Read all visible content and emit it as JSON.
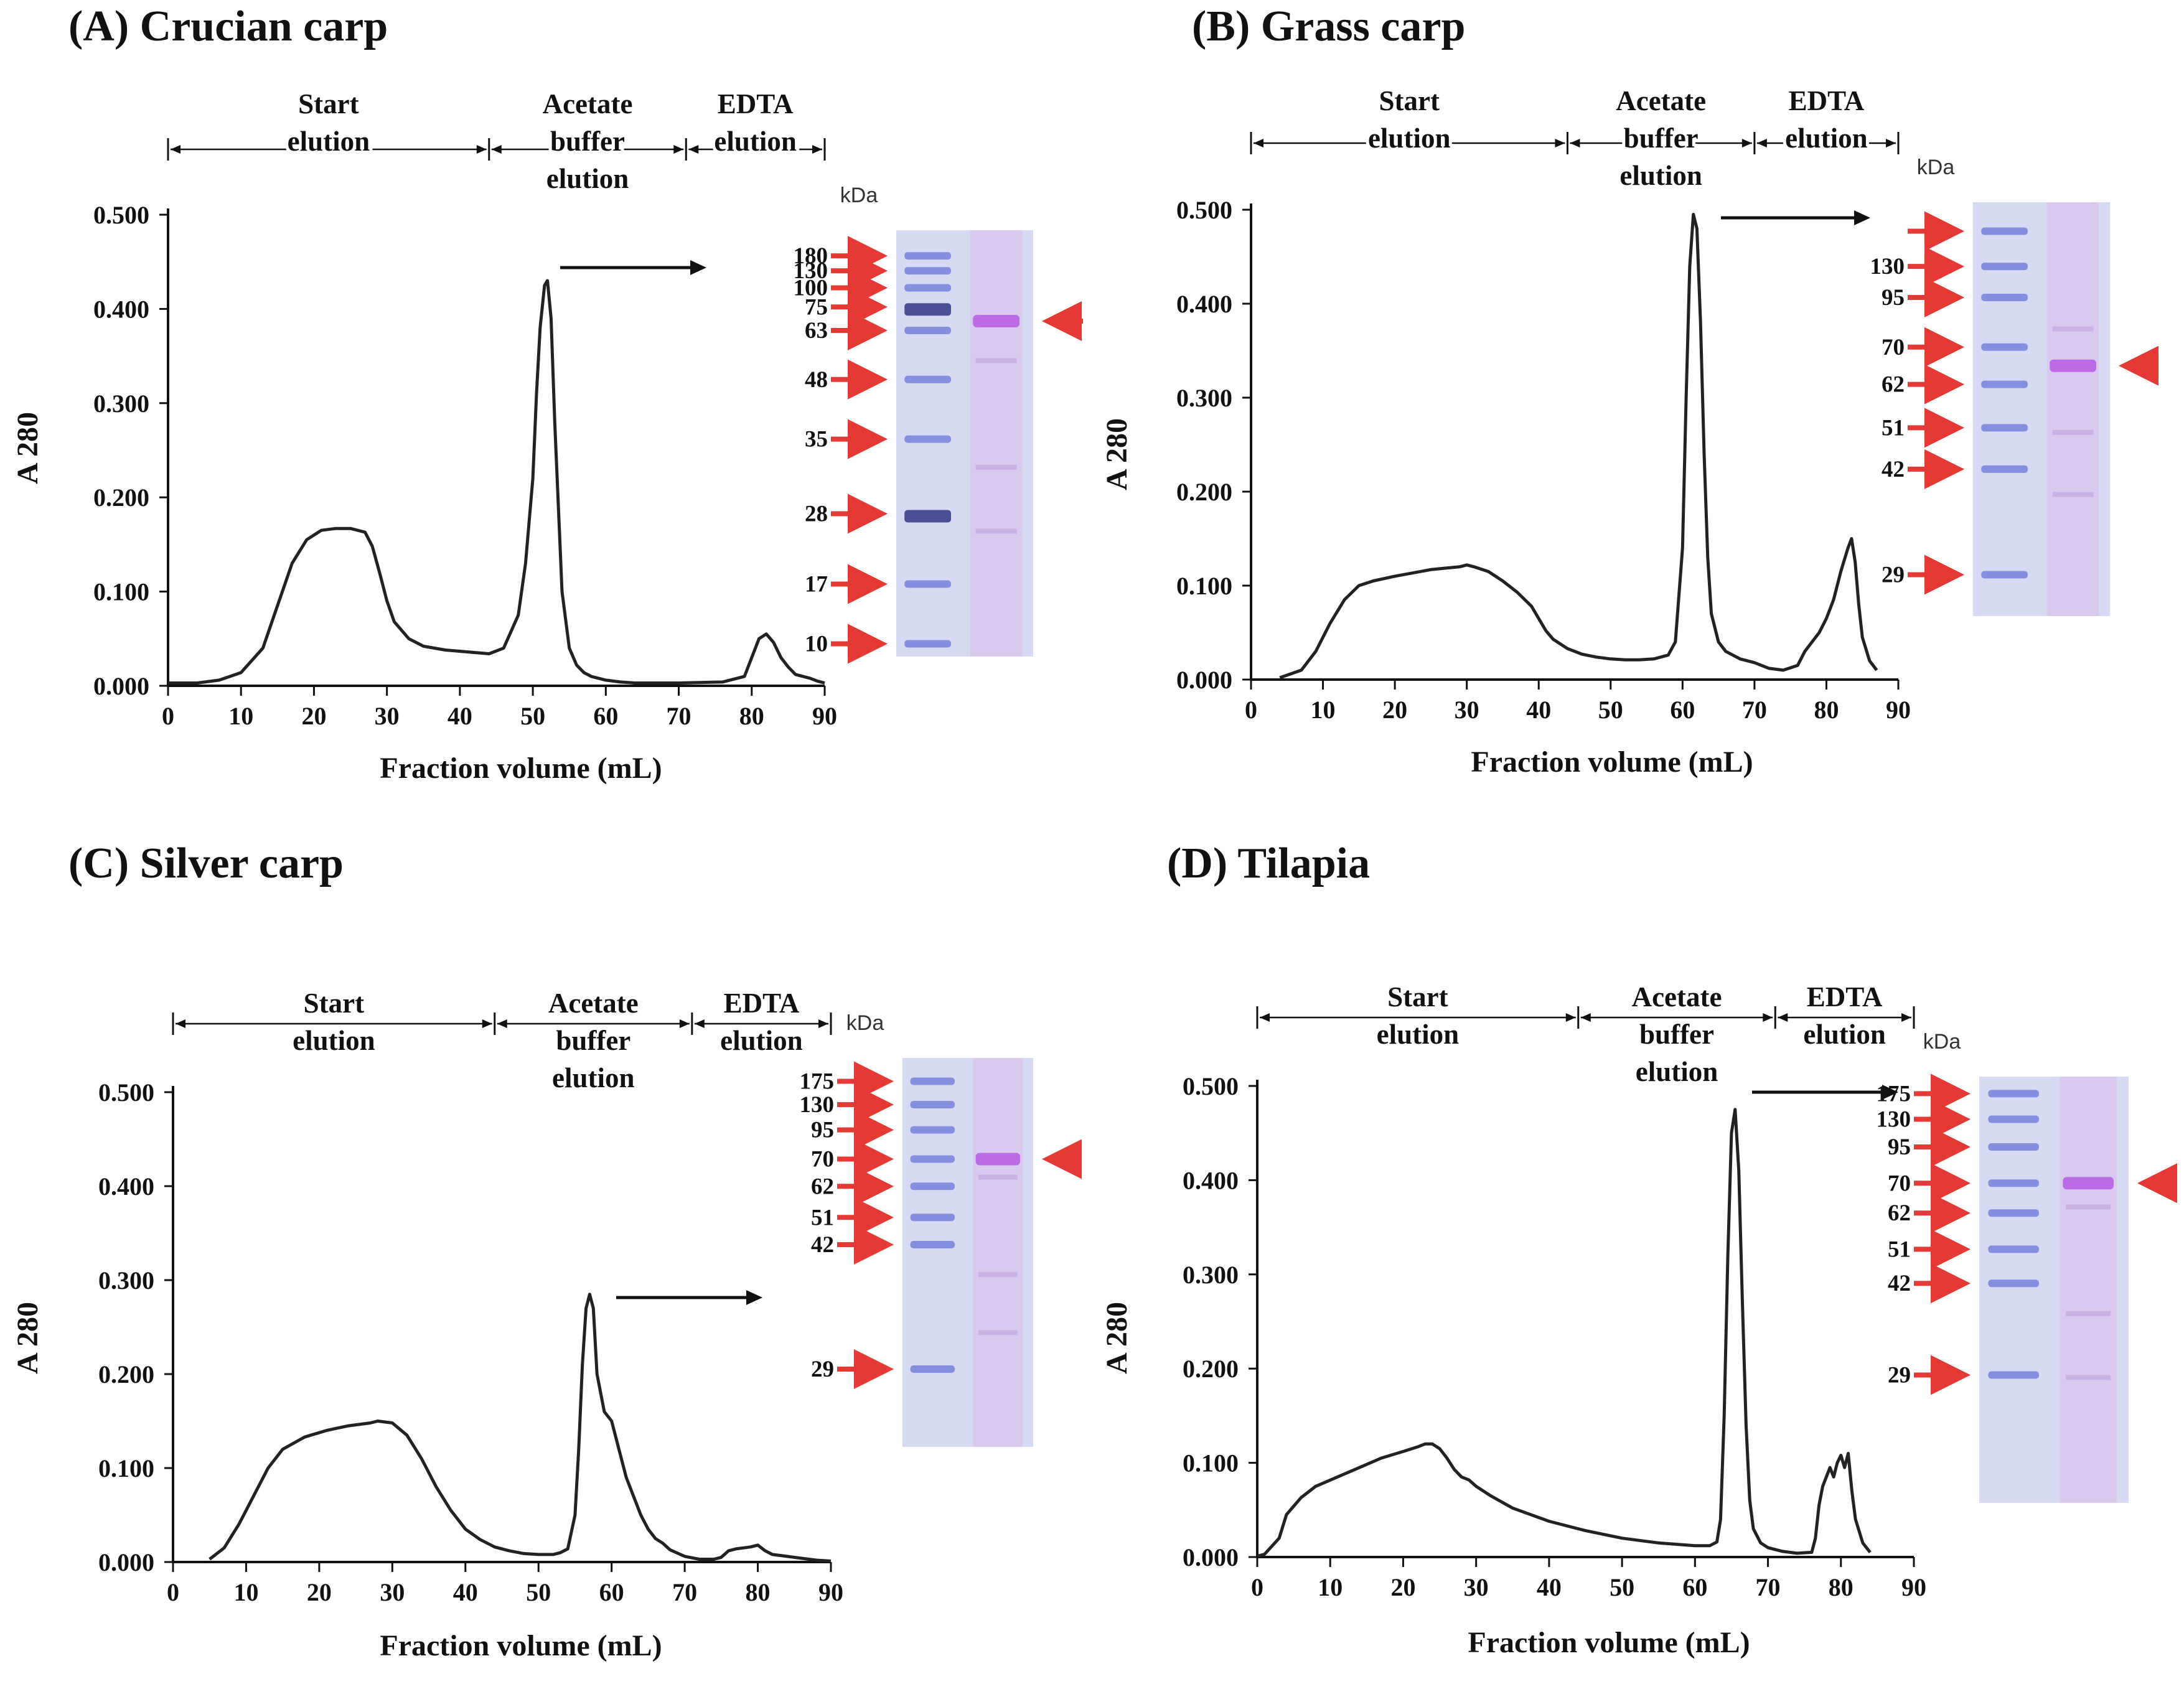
{
  "chart_data": [
    {
      "type": "line",
      "title": "(A) Crucian carp",
      "xlabel": "Fraction volume (mL)",
      "ylabel": "A 280",
      "xlim": [
        0,
        90
      ],
      "ylim": [
        0,
        0.5
      ],
      "xticks": [
        "0",
        "10",
        "20",
        "30",
        "40",
        "50",
        "60",
        "70",
        "80",
        "90"
      ],
      "yticks": [
        "0.000",
        "0.100",
        "0.200",
        "0.300",
        "0.400",
        "0.500"
      ],
      "elution_labels": [
        [
          "Start",
          "elution"
        ],
        [
          "Acetate",
          "buffer",
          "elution"
        ],
        [
          "EDTA",
          "elution"
        ]
      ],
      "elution_bounds": [
        0,
        44,
        71,
        90
      ],
      "gel": {
        "unit_label": "kDa",
        "markers": [
          "180",
          "130",
          "100",
          "75",
          "63",
          "48",
          "35",
          "28",
          "17",
          "10"
        ],
        "target_band": "63"
      },
      "series": [
        {
          "name": "A280",
          "x": [
            0,
            4,
            7,
            10,
            13,
            15,
            17,
            19,
            21,
            23,
            25,
            27,
            28,
            29,
            30,
            31,
            33,
            35,
            38,
            41,
            44,
            46,
            48,
            49,
            50,
            50.5,
            51,
            51.6,
            52,
            52.5,
            53,
            54,
            55,
            56,
            57,
            58,
            60,
            62,
            64,
            70,
            76,
            79,
            80,
            81,
            82,
            83,
            84,
            85,
            86,
            88,
            89,
            90
          ],
          "y": [
            0.003,
            0.003,
            0.006,
            0.014,
            0.04,
            0.085,
            0.13,
            0.155,
            0.165,
            0.167,
            0.167,
            0.163,
            0.148,
            0.12,
            0.09,
            0.068,
            0.05,
            0.042,
            0.038,
            0.036,
            0.034,
            0.04,
            0.075,
            0.13,
            0.22,
            0.31,
            0.38,
            0.425,
            0.43,
            0.39,
            0.28,
            0.1,
            0.04,
            0.022,
            0.014,
            0.01,
            0.006,
            0.004,
            0.003,
            0.003,
            0.004,
            0.01,
            0.03,
            0.05,
            0.055,
            0.046,
            0.03,
            0.02,
            0.012,
            0.008,
            0.005,
            0.003
          ]
        }
      ]
    },
    {
      "type": "line",
      "title": "(B) Grass carp",
      "xlabel": "Fraction volume (mL)",
      "ylabel": "A 280",
      "xlim": [
        0,
        90
      ],
      "ylim": [
        0,
        0.5
      ],
      "xticks": [
        "0",
        "10",
        "20",
        "30",
        "40",
        "50",
        "60",
        "70",
        "80",
        "90"
      ],
      "yticks": [
        "0.000",
        "0.100",
        "0.200",
        "0.300",
        "0.400",
        "0.500"
      ],
      "elution_labels": [
        [
          "Start",
          "elution"
        ],
        [
          "Acetate",
          "buffer",
          "elution"
        ],
        [
          "EDTA",
          "elution"
        ]
      ],
      "elution_bounds": [
        0,
        44,
        70,
        90
      ],
      "gel": {
        "unit_label": "kDa",
        "markers": [
          "",
          "130",
          "95",
          "70",
          "62",
          "51",
          "42",
          "29"
        ],
        "target_band": "70"
      },
      "series": [
        {
          "name": "A280",
          "x": [
            4,
            7,
            9,
            11,
            13,
            15,
            17,
            20,
            25,
            29,
            30,
            31,
            33,
            35,
            37,
            39,
            40,
            41,
            42,
            44,
            46,
            48,
            50,
            52,
            54,
            56,
            58,
            59,
            60,
            60.5,
            61,
            61.5,
            62,
            62.5,
            63,
            63.5,
            64,
            65,
            66,
            68,
            70,
            72,
            74,
            76,
            77,
            78,
            79,
            80,
            81,
            82,
            83,
            83.5,
            84,
            84.5,
            85,
            86,
            87
          ],
          "y": [
            0.002,
            0.01,
            0.03,
            0.06,
            0.085,
            0.1,
            0.105,
            0.11,
            0.117,
            0.12,
            0.122,
            0.12,
            0.115,
            0.105,
            0.093,
            0.078,
            0.065,
            0.052,
            0.043,
            0.033,
            0.027,
            0.024,
            0.022,
            0.021,
            0.021,
            0.022,
            0.026,
            0.04,
            0.14,
            0.3,
            0.44,
            0.495,
            0.48,
            0.38,
            0.24,
            0.13,
            0.07,
            0.04,
            0.03,
            0.022,
            0.018,
            0.012,
            0.01,
            0.015,
            0.03,
            0.04,
            0.05,
            0.065,
            0.085,
            0.115,
            0.14,
            0.15,
            0.125,
            0.08,
            0.045,
            0.02,
            0.01
          ]
        }
      ]
    },
    {
      "type": "line",
      "title": "(C) Silver carp",
      "xlabel": "Fraction volume (mL)",
      "ylabel": "A 280",
      "xlim": [
        0,
        90
      ],
      "ylim": [
        0,
        0.5
      ],
      "xticks": [
        "0",
        "10",
        "20",
        "30",
        "40",
        "50",
        "60",
        "70",
        "80",
        "90"
      ],
      "yticks": [
        "0.000",
        "0.100",
        "0.200",
        "0.300",
        "0.400",
        "0.500"
      ],
      "elution_labels": [
        [
          "Start",
          "elution"
        ],
        [
          "Acetate",
          "buffer",
          "elution"
        ],
        [
          "EDTA",
          "elution"
        ]
      ],
      "elution_bounds": [
        0,
        44,
        71,
        90
      ],
      "gel": {
        "unit_label": "kDa",
        "markers": [
          "175",
          "130",
          "95",
          "70",
          "62",
          "51",
          "42",
          "29"
        ],
        "target_band": "70"
      },
      "series": [
        {
          "name": "A280",
          "x": [
            5,
            7,
            9,
            11,
            13,
            15,
            18,
            21,
            24,
            27,
            28,
            30,
            32,
            34,
            36,
            38,
            40,
            42,
            44,
            46,
            48,
            50,
            52,
            53,
            54,
            55,
            55.5,
            56,
            56.5,
            57,
            57.5,
            58,
            59,
            60,
            61,
            62,
            63,
            64,
            65,
            66,
            67,
            68,
            70,
            72,
            74,
            75,
            76,
            77,
            78,
            79,
            80,
            81,
            82,
            84,
            86,
            88,
            90
          ],
          "y": [
            0.003,
            0.015,
            0.04,
            0.07,
            0.1,
            0.12,
            0.133,
            0.14,
            0.145,
            0.148,
            0.15,
            0.148,
            0.135,
            0.11,
            0.08,
            0.055,
            0.035,
            0.024,
            0.016,
            0.012,
            0.009,
            0.008,
            0.008,
            0.01,
            0.014,
            0.05,
            0.12,
            0.21,
            0.27,
            0.285,
            0.27,
            0.2,
            0.16,
            0.15,
            0.12,
            0.09,
            0.07,
            0.05,
            0.035,
            0.025,
            0.02,
            0.013,
            0.006,
            0.003,
            0.003,
            0.005,
            0.012,
            0.014,
            0.015,
            0.016,
            0.018,
            0.012,
            0.008,
            0.006,
            0.004,
            0.002,
            0.001
          ]
        }
      ]
    },
    {
      "type": "line",
      "title": "(D) Tilapia",
      "xlabel": "Fraction volume (mL)",
      "ylabel": "A 280",
      "xlim": [
        0,
        90
      ],
      "ylim": [
        0,
        0.5
      ],
      "xticks": [
        "0",
        "10",
        "20",
        "30",
        "40",
        "50",
        "60",
        "70",
        "80",
        "90"
      ],
      "yticks": [
        "0.000",
        "0.100",
        "0.200",
        "0.300",
        "0.400",
        "0.500"
      ],
      "elution_labels": [
        [
          "Start",
          "elution"
        ],
        [
          "Acetate",
          "buffer",
          "elution"
        ],
        [
          "EDTA",
          "elution"
        ]
      ],
      "elution_bounds": [
        0,
        44,
        71,
        90
      ],
      "gel": {
        "unit_label": "kDa",
        "markers": [
          "175",
          "130",
          "95",
          "70",
          "62",
          "51",
          "42",
          "29"
        ],
        "target_band": "70"
      },
      "series": [
        {
          "name": "A280",
          "x": [
            0,
            1,
            3,
            4,
            6,
            8,
            11,
            14,
            17,
            20,
            22,
            23,
            24,
            25,
            26,
            27,
            28,
            29,
            30,
            32,
            35,
            40,
            45,
            50,
            55,
            60,
            62,
            63,
            63.5,
            64,
            64.5,
            65,
            65.5,
            66,
            66.5,
            67,
            67.5,
            68,
            69,
            70,
            72,
            74,
            76,
            76.5,
            77,
            77.5,
            78,
            78.5,
            79,
            79.5,
            80,
            80.5,
            81,
            81.5,
            82,
            83,
            84
          ],
          "y": [
            0.001,
            0.003,
            0.02,
            0.045,
            0.063,
            0.075,
            0.085,
            0.095,
            0.105,
            0.112,
            0.117,
            0.12,
            0.12,
            0.115,
            0.105,
            0.093,
            0.085,
            0.082,
            0.075,
            0.065,
            0.052,
            0.038,
            0.028,
            0.02,
            0.015,
            0.012,
            0.012,
            0.016,
            0.04,
            0.15,
            0.32,
            0.45,
            0.475,
            0.41,
            0.27,
            0.14,
            0.06,
            0.03,
            0.015,
            0.01,
            0.006,
            0.004,
            0.005,
            0.02,
            0.055,
            0.075,
            0.085,
            0.095,
            0.085,
            0.1,
            0.108,
            0.095,
            0.11,
            0.07,
            0.04,
            0.015,
            0.005
          ]
        }
      ]
    }
  ]
}
